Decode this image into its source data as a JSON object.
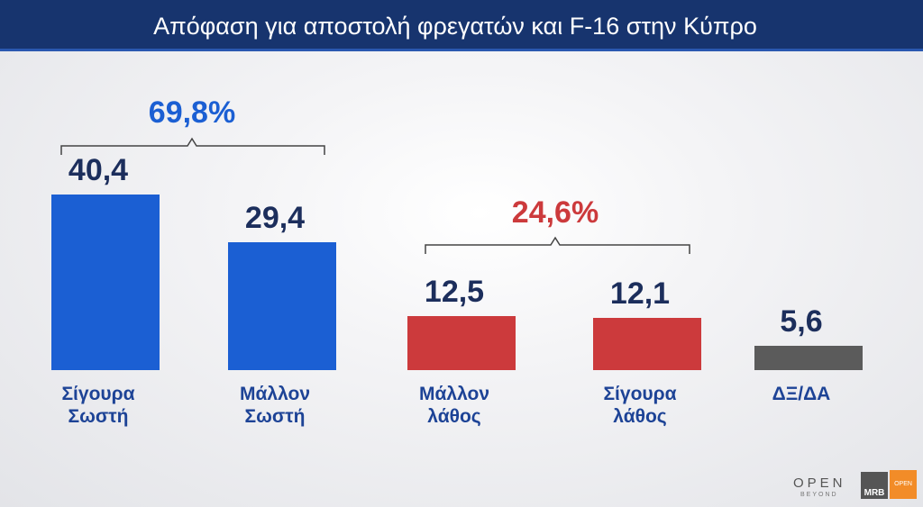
{
  "chart_data": {
    "type": "bar",
    "title": "Απόφαση για αποστολή φρεγατών και F-16 στην Κύπρο",
    "categories": [
      "Σίγουρα Σωστή",
      "Μάλλον Σωστή",
      "Μάλλον λάθος",
      "Σίγουρα λάθος",
      "ΔΞ/ΔΑ"
    ],
    "values": [
      40.4,
      29.4,
      12.5,
      12.1,
      5.6
    ],
    "value_labels": [
      "40,4",
      "29,4",
      "12,5",
      "12,1",
      "5,6"
    ],
    "colors": [
      "#1b5fd3",
      "#1b5fd3",
      "#cc3a3c",
      "#cc3a3c",
      "#5b5b5b"
    ],
    "annotations": [
      {
        "text": "69,8%",
        "color": "#1b5fd3"
      },
      {
        "text": "24,6%",
        "color": "#cc3a3c"
      }
    ],
    "logos": [
      "OPEN",
      "BEYOND",
      "MRB",
      "OPEN"
    ]
  }
}
